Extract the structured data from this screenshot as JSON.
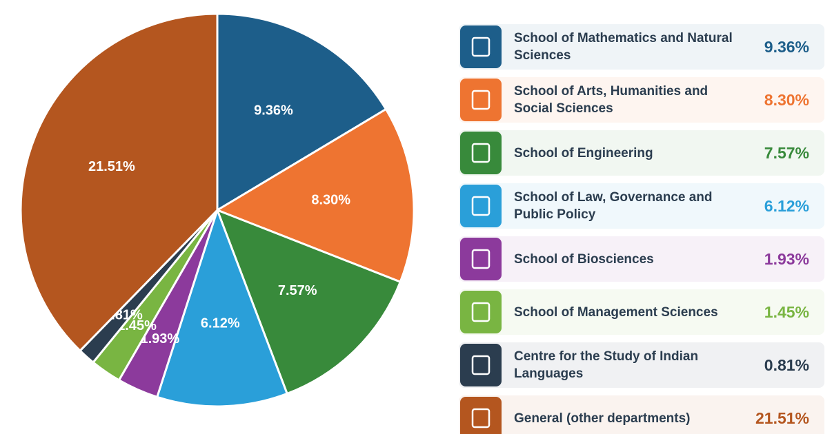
{
  "chart_data": {
    "type": "pie",
    "categories": [
      "School of Mathematics and Natural Sciences",
      "School of Arts, Humanities and Social Sciences",
      "School of Engineering",
      "School of Law, Governance and Public Policy",
      "School of Biosciences",
      "School of Management Sciences",
      "Centre for the Study of Indian Languages",
      "General (other departments)"
    ],
    "values": [
      9.36,
      8.3,
      7.57,
      6.12,
      1.93,
      1.45,
      0.81,
      21.51
    ],
    "value_labels": [
      "9.36%",
      "8.30%",
      "7.57%",
      "6.12%",
      "1.93%",
      "1.45%",
      "0.81%",
      "21.51%"
    ],
    "colors": [
      "#1d5e8a",
      "#ee7431",
      "#388a3b",
      "#2a9fd9",
      "#8c3a9c",
      "#79b542",
      "#2b3d4f",
      "#b4561f"
    ],
    "legend": "right"
  }
}
